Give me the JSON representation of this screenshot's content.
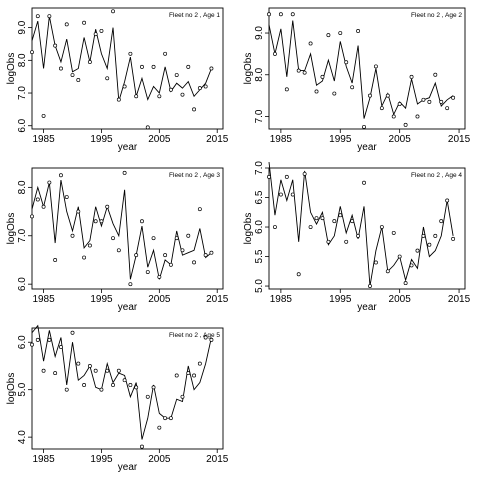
{
  "chart_data": [
    {
      "type": "line",
      "title": "Fleet no 2 , Age 1",
      "xlabel": "year",
      "ylabel": "logObs",
      "xlim": [
        1983,
        2016
      ],
      "ylim": [
        5.9,
        9.6
      ],
      "x_ticks": [
        1985,
        1995,
        2005,
        2015
      ],
      "y_ticks": [
        6.0,
        7.0,
        8.0,
        9.0
      ],
      "y_tick_labels": [
        "6.0",
        "7.0",
        "8.0",
        "9.0"
      ],
      "x": [
        1983,
        1984,
        1985,
        1986,
        1987,
        1988,
        1989,
        1990,
        1991,
        1992,
        1993,
        1994,
        1995,
        1996,
        1997,
        1998,
        1999,
        2000,
        2001,
        2002,
        2003,
        2004,
        2005,
        2006,
        2007,
        2008,
        2009,
        2010,
        2011,
        2012,
        2013,
        2014
      ],
      "series": [
        {
          "role": "fitted",
          "values": [
            8.6,
            9.2,
            7.75,
            9.35,
            8.45,
            7.95,
            8.65,
            7.65,
            7.75,
            8.7,
            7.95,
            8.95,
            8.2,
            7.75,
            9.0,
            6.75,
            7.35,
            8.1,
            6.9,
            7.45,
            6.8,
            7.2,
            7.0,
            7.8,
            7.05,
            7.3,
            7.15,
            7.35,
            6.9,
            7.1,
            7.3,
            7.75
          ]
        },
        {
          "role": "observed",
          "values": [
            8.25,
            9.35,
            6.3,
            9.35,
            8.45,
            7.75,
            9.1,
            7.55,
            7.4,
            9.15,
            7.95,
            8.8,
            8.9,
            7.45,
            9.5,
            6.8,
            7.2,
            8.2,
            6.9,
            7.8,
            5.95,
            7.8,
            6.9,
            8.2,
            7.1,
            7.55,
            6.95,
            7.8,
            6.5,
            7.15,
            7.2,
            7.75
          ]
        }
      ]
    },
    {
      "type": "line",
      "title": "Fleet no 2 , Age 2",
      "xlabel": "year",
      "ylabel": "logObs",
      "xlim": [
        1983,
        2016
      ],
      "ylim": [
        6.7,
        9.6
      ],
      "x_ticks": [
        1985,
        1995,
        2005,
        2015
      ],
      "y_ticks": [
        7.0,
        8.0,
        9.0
      ],
      "y_tick_labels": [
        "7.0",
        "8.0",
        "9.0"
      ],
      "x": [
        1983,
        1984,
        1985,
        1986,
        1987,
        1988,
        1989,
        1990,
        1991,
        1992,
        1993,
        1994,
        1995,
        1996,
        1997,
        1998,
        1999,
        2000,
        2001,
        2002,
        2003,
        2004,
        2005,
        2006,
        2007,
        2008,
        2009,
        2010,
        2011,
        2012,
        2013,
        2014
      ],
      "series": [
        {
          "role": "fitted",
          "values": [
            9.2,
            8.5,
            9.1,
            7.95,
            9.3,
            8.1,
            8.1,
            8.5,
            7.75,
            7.85,
            8.35,
            7.85,
            8.8,
            8.2,
            7.8,
            8.7,
            6.95,
            7.45,
            8.15,
            7.25,
            7.55,
            7.05,
            7.35,
            7.2,
            7.9,
            7.3,
            7.4,
            7.45,
            7.8,
            7.25,
            7.4,
            7.5
          ]
        },
        {
          "role": "observed",
          "values": [
            9.45,
            8.5,
            9.45,
            7.65,
            9.45,
            8.1,
            8.05,
            8.75,
            7.6,
            7.95,
            8.95,
            7.55,
            9.0,
            8.3,
            7.7,
            9.05,
            6.75,
            7.5,
            8.2,
            7.2,
            7.5,
            7.0,
            7.3,
            6.8,
            7.95,
            7.0,
            7.4,
            7.35,
            8.0,
            7.35,
            7.2,
            7.45
          ]
        }
      ]
    },
    {
      "type": "line",
      "title": "Fleet no 2 , Age 3",
      "xlabel": "year",
      "ylabel": "logObs",
      "xlim": [
        1983,
        2016
      ],
      "ylim": [
        5.9,
        8.4
      ],
      "x_ticks": [
        1985,
        1995,
        2005,
        2015
      ],
      "y_ticks": [
        6.0,
        7.0,
        8.0
      ],
      "y_tick_labels": [
        "6.0",
        "7.0",
        "8.0"
      ],
      "x": [
        1983,
        1984,
        1985,
        1986,
        1987,
        1988,
        1989,
        1990,
        1991,
        1992,
        1993,
        1994,
        1995,
        1996,
        1997,
        1998,
        1999,
        2000,
        2001,
        2002,
        2003,
        2004,
        2005,
        2006,
        2007,
        2008,
        2009,
        2010,
        2011,
        2012,
        2013,
        2014
      ],
      "series": [
        {
          "role": "fitted",
          "values": [
            7.55,
            8.0,
            7.6,
            8.1,
            6.85,
            8.15,
            7.5,
            7.1,
            7.6,
            6.75,
            6.9,
            7.6,
            7.2,
            7.6,
            7.25,
            7.0,
            7.95,
            6.1,
            6.6,
            7.2,
            6.35,
            6.7,
            6.1,
            6.5,
            6.4,
            7.1,
            6.6,
            6.65,
            6.7,
            7.15,
            6.55,
            6.65
          ]
        },
        {
          "role": "observed",
          "values": [
            7.4,
            7.75,
            7.6,
            8.1,
            6.5,
            8.25,
            7.8,
            7.0,
            7.5,
            6.55,
            6.8,
            7.3,
            7.3,
            7.6,
            6.95,
            6.7,
            8.3,
            6.0,
            6.6,
            7.3,
            6.25,
            6.95,
            6.15,
            6.6,
            6.4,
            6.95,
            6.7,
            7.0,
            6.45,
            7.55,
            6.6,
            6.65
          ]
        }
      ]
    },
    {
      "type": "line",
      "title": "Fleet no 2 , Age 4",
      "xlabel": "year",
      "ylabel": "logObs",
      "xlim": [
        1983,
        2016
      ],
      "ylim": [
        4.95,
        7.0
      ],
      "x_ticks": [
        1985,
        1995,
        2005,
        2015
      ],
      "y_ticks": [
        5.0,
        5.5,
        6.0,
        6.5,
        7.0
      ],
      "y_tick_labels": [
        "5.0",
        "5.5",
        "6.0",
        "6.5",
        "7.0"
      ],
      "x": [
        1983,
        1984,
        1985,
        1986,
        1987,
        1988,
        1989,
        1990,
        1991,
        1992,
        1993,
        1994,
        1995,
        1996,
        1997,
        1998,
        1999,
        2000,
        2001,
        2002,
        2003,
        2004,
        2005,
        2006,
        2007,
        2008,
        2009,
        2010,
        2011,
        2012,
        2013,
        2014
      ],
      "series": [
        {
          "role": "fitted",
          "values": [
            7.1,
            6.2,
            6.8,
            6.45,
            6.8,
            5.75,
            6.95,
            6.25,
            6.05,
            6.25,
            5.7,
            5.85,
            6.35,
            5.9,
            6.2,
            5.8,
            6.35,
            5.0,
            5.6,
            6.0,
            5.25,
            5.35,
            5.5,
            5.1,
            5.45,
            5.3,
            6.0,
            5.5,
            5.6,
            5.85,
            6.45,
            5.85
          ]
        },
        {
          "role": "observed",
          "values": [
            6.85,
            6.0,
            6.55,
            6.85,
            6.55,
            5.2,
            6.9,
            6.0,
            6.15,
            6.15,
            5.75,
            6.1,
            6.2,
            5.75,
            6.1,
            5.85,
            6.75,
            5.0,
            5.4,
            6.0,
            5.25,
            5.9,
            5.5,
            5.05,
            5.35,
            5.6,
            5.85,
            5.7,
            5.85,
            6.1,
            6.45,
            5.8
          ]
        }
      ]
    },
    {
      "type": "line",
      "title": "Fleet no 2 , Age 5",
      "xlabel": "year",
      "ylabel": "logObs",
      "xlim": [
        1983,
        2016
      ],
      "ylim": [
        3.75,
        6.3
      ],
      "x_ticks": [
        1985,
        1995,
        2005,
        2015
      ],
      "y_ticks": [
        4.0,
        5.0,
        6.0
      ],
      "y_tick_labels": [
        "4.0",
        "5.0",
        "6.0"
      ],
      "x": [
        1983,
        1984,
        1985,
        1986,
        1987,
        1988,
        1989,
        1990,
        1991,
        1992,
        1993,
        1994,
        1995,
        1996,
        1997,
        1998,
        1999,
        2000,
        2001,
        2002,
        2003,
        2004,
        2005,
        2006,
        2007,
        2008,
        2009,
        2010,
        2011,
        2012,
        2013,
        2014
      ],
      "series": [
        {
          "role": "fitted",
          "values": [
            6.2,
            6.35,
            5.6,
            6.25,
            5.7,
            6.1,
            5.1,
            6.0,
            5.2,
            5.3,
            5.5,
            5.05,
            5.0,
            5.55,
            5.15,
            5.35,
            5.3,
            4.85,
            5.15,
            3.95,
            4.4,
            5.1,
            4.5,
            4.4,
            4.4,
            4.8,
            4.75,
            5.5,
            5.0,
            5.15,
            5.55,
            6.1
          ]
        },
        {
          "role": "observed",
          "values": [
            5.95,
            6.05,
            5.4,
            6.05,
            5.35,
            5.9,
            5.0,
            6.2,
            5.55,
            5.1,
            5.5,
            5.4,
            5.0,
            5.4,
            5.1,
            5.4,
            5.2,
            5.1,
            5.05,
            3.8,
            4.85,
            5.05,
            4.2,
            4.4,
            4.4,
            5.3,
            4.85,
            5.35,
            5.3,
            5.55,
            6.1,
            6.05
          ]
        }
      ]
    }
  ]
}
